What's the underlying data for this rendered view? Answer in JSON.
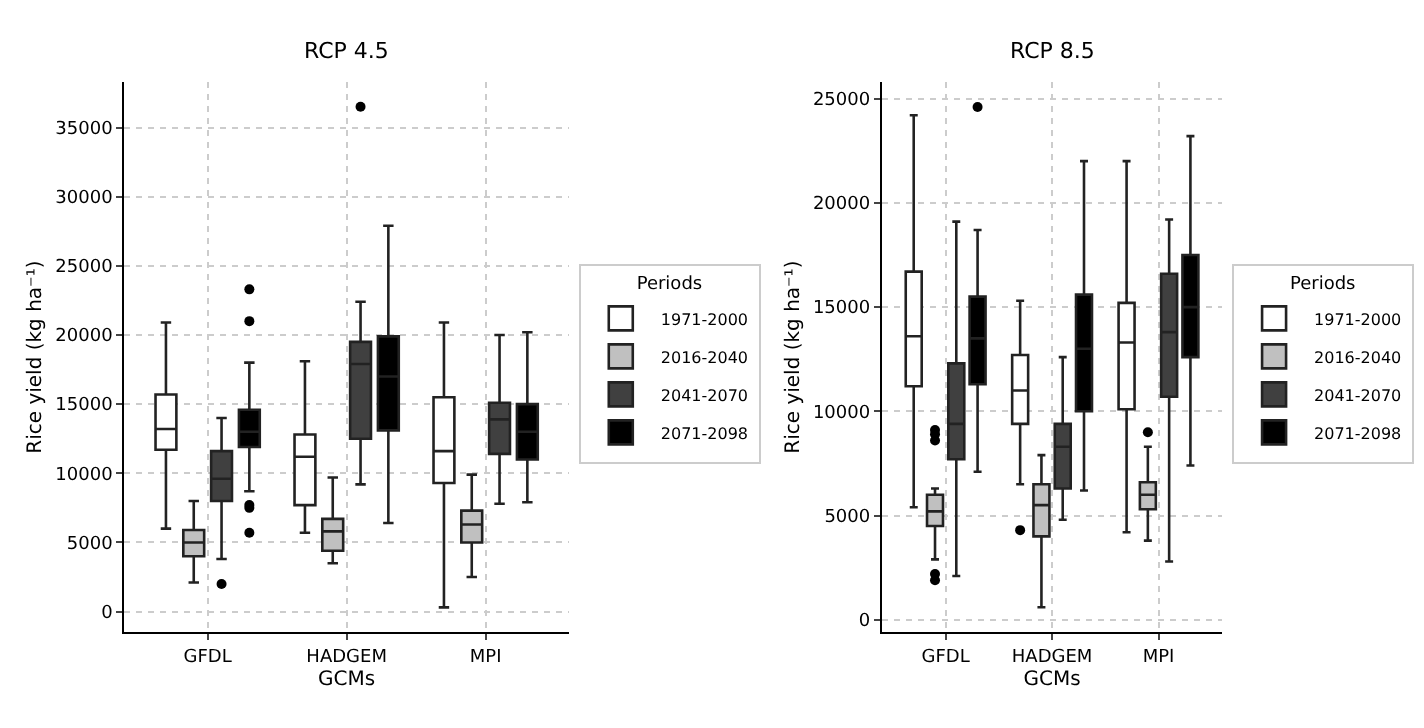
{
  "chart_data": [
    {
      "type": "box",
      "title": "RCP 4.5",
      "xlabel": "GCMs",
      "ylabel": "Rice yield (kg ha⁻¹)",
      "legend_title": "Periods",
      "legend": "right",
      "grid": true,
      "categories": [
        "GFDL",
        "HADGEM",
        "MPI"
      ],
      "ylim": [
        -1500,
        38300
      ],
      "yticks": [
        0,
        5000,
        10000,
        15000,
        20000,
        25000,
        30000,
        35000
      ],
      "series": [
        {
          "name": "1971-2000",
          "color": "#ffffff",
          "boxes": [
            {
              "low": 6000,
              "q1": 11700,
              "median": 13200,
              "q3": 15700,
              "high": 20900
            },
            {
              "low": 5700,
              "q1": 7700,
              "median": 11200,
              "q3": 12800,
              "high": 18100
            },
            {
              "low": 300,
              "q1": 9300,
              "median": 11600,
              "q3": 15500,
              "high": 20900
            }
          ]
        },
        {
          "name": "2016-2040",
          "color": "#c0c0c0",
          "boxes": [
            {
              "low": 2100,
              "q1": 4000,
              "median": 5000,
              "q3": 5900,
              "high": 8000
            },
            {
              "low": 3500,
              "q1": 4400,
              "median": 5800,
              "q3": 6700,
              "high": 9700
            },
            {
              "low": 2500,
              "q1": 5000,
              "median": 6300,
              "q3": 7300,
              "high": 9900
            }
          ]
        },
        {
          "name": "2041-2070",
          "color": "#404040",
          "boxes": [
            {
              "low": 3800,
              "q1": 8000,
              "median": 9600,
              "q3": 11600,
              "high": 14000,
              "outliers": [
                2000
              ]
            },
            {
              "low": 9200,
              "q1": 12500,
              "median": 17900,
              "q3": 19500,
              "high": 22400,
              "outliers": [
                36500
              ]
            },
            {
              "low": 7800,
              "q1": 11400,
              "median": 13900,
              "q3": 15100,
              "high": 20000
            }
          ]
        },
        {
          "name": "2071-2098",
          "color": "#000000",
          "boxes": [
            {
              "low": 8700,
              "q1": 11900,
              "median": 13000,
              "q3": 14600,
              "high": 18000,
              "outliers": [
                23300,
                21000,
                7700,
                7500,
                5700
              ]
            },
            {
              "low": 6400,
              "q1": 13100,
              "median": 17000,
              "q3": 19900,
              "high": 27900
            },
            {
              "low": 7900,
              "q1": 11000,
              "median": 13000,
              "q3": 15000,
              "high": 20200
            }
          ]
        }
      ]
    },
    {
      "type": "box",
      "title": "RCP 8.5",
      "xlabel": "GCMs",
      "ylabel": "Rice yield (kg ha⁻¹)",
      "legend_title": "Periods",
      "legend": "right",
      "grid": true,
      "categories": [
        "GFDL",
        "HADGEM",
        "MPI"
      ],
      "ylim": [
        -600,
        25800
      ],
      "yticks": [
        0,
        5000,
        10000,
        15000,
        20000,
        25000
      ],
      "series": [
        {
          "name": "1971-2000",
          "color": "#ffffff",
          "boxes": [
            {
              "low": 5400,
              "q1": 11200,
              "median": 13600,
              "q3": 16700,
              "high": 24200
            },
            {
              "low": 6500,
              "q1": 9400,
              "median": 11000,
              "q3": 12700,
              "high": 15300,
              "outliers": [
                4300
              ]
            },
            {
              "low": 4200,
              "q1": 10100,
              "median": 13300,
              "q3": 15200,
              "high": 22000
            }
          ]
        },
        {
          "name": "2016-2040",
          "color": "#c0c0c0",
          "boxes": [
            {
              "low": 2900,
              "q1": 4500,
              "median": 5200,
              "q3": 6000,
              "high": 6300,
              "outliers": [
                9100,
                8900,
                8600,
                2200,
                1900
              ]
            },
            {
              "low": 600,
              "q1": 4000,
              "median": 5500,
              "q3": 6500,
              "high": 7900
            },
            {
              "low": 3800,
              "q1": 5300,
              "median": 6000,
              "q3": 6600,
              "high": 8300,
              "outliers": [
                9000
              ]
            }
          ]
        },
        {
          "name": "2041-2070",
          "color": "#404040",
          "boxes": [
            {
              "low": 2100,
              "q1": 7700,
              "median": 9400,
              "q3": 12300,
              "high": 19100
            },
            {
              "low": 4800,
              "q1": 6300,
              "median": 8300,
              "q3": 9400,
              "high": 12600
            },
            {
              "low": 2800,
              "q1": 10700,
              "median": 13800,
              "q3": 16600,
              "high": 19200
            }
          ]
        },
        {
          "name": "2071-2098",
          "color": "#000000",
          "boxes": [
            {
              "low": 7100,
              "q1": 11300,
              "median": 13500,
              "q3": 15500,
              "high": 18700,
              "outliers": [
                24600
              ]
            },
            {
              "low": 6200,
              "q1": 10000,
              "median": 13000,
              "q3": 15600,
              "high": 22000
            },
            {
              "low": 7400,
              "q1": 12600,
              "median": 15000,
              "q3": 17500,
              "high": 23200
            }
          ]
        }
      ]
    }
  ]
}
